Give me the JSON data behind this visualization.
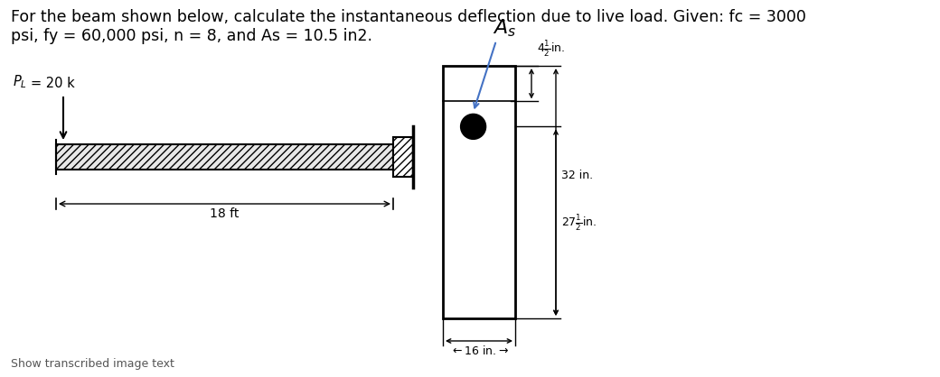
{
  "title_line1": "For the beam shown below, calculate the instantaneous deflection due to live load. Given: fc = 3000",
  "title_line2": "psi, fy = 60,000 psi, n = 8, and As = 10.5 in2.",
  "title_fontsize": 12.5,
  "bg_color": "#ffffff",
  "label_PL": "P_L = 20 k",
  "label_As": "A_s",
  "label_18ft": "18 ft",
  "label_16in": "16 in.",
  "label_32in": "32 in.",
  "label_27in": "27",
  "label_4half_in": "4",
  "footer_text": "Show transcribed image text"
}
